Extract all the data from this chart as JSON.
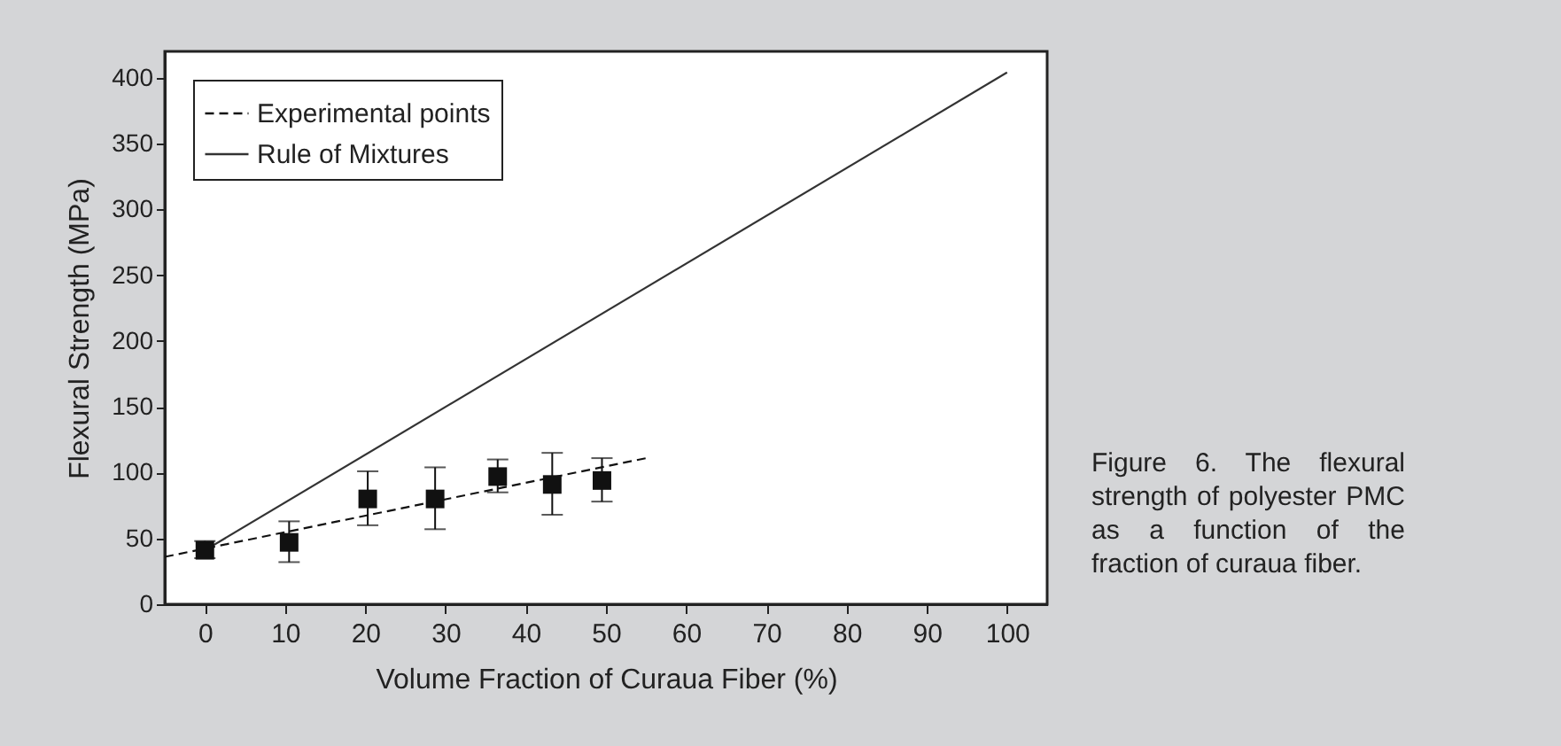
{
  "chart_data": {
    "type": "scatter",
    "xlabel": "Volume Fraction of Curaua Fiber (%)",
    "ylabel": "Flexural Strength (MPa)",
    "annotations": [
      "Figure 6. The flexural strength of polyester PMC as a function of the fraction of curaua fiber."
    ],
    "xlim": [
      -5,
      105
    ],
    "xticks": [
      0,
      10,
      20,
      30,
      40,
      50,
      60,
      70,
      80,
      90,
      100
    ],
    "ylim": [
      0,
      420
    ],
    "yticks": [
      0,
      50,
      100,
      150,
      200,
      250,
      300,
      350,
      400
    ],
    "grid": false,
    "legend": "top left",
    "series": [
      {
        "type": "scatter",
        "marker": "square",
        "color": "#111111",
        "x": [
          0,
          10.5,
          20.3,
          28.7,
          36.5,
          43.3,
          49.5
        ],
        "values": [
          41,
          47,
          80,
          80,
          97,
          91,
          94
        ],
        "errors": [
          [
            35,
            48
          ],
          [
            32,
            63
          ],
          [
            60,
            101
          ],
          [
            57,
            104
          ],
          [
            85,
            110
          ],
          [
            68,
            115
          ],
          [
            78,
            111
          ]
        ]
      },
      {
        "name": "Experimental points",
        "type": "line",
        "line_style": "dashed",
        "color": "#111111",
        "x": [
          -5,
          55
        ],
        "values": [
          36,
          111
        ]
      },
      {
        "name": "Rule of Mixtures",
        "type": "line",
        "line_style": "solid",
        "color": "#333333",
        "x": [
          0,
          100
        ],
        "values": [
          41,
          404
        ]
      }
    ]
  }
}
